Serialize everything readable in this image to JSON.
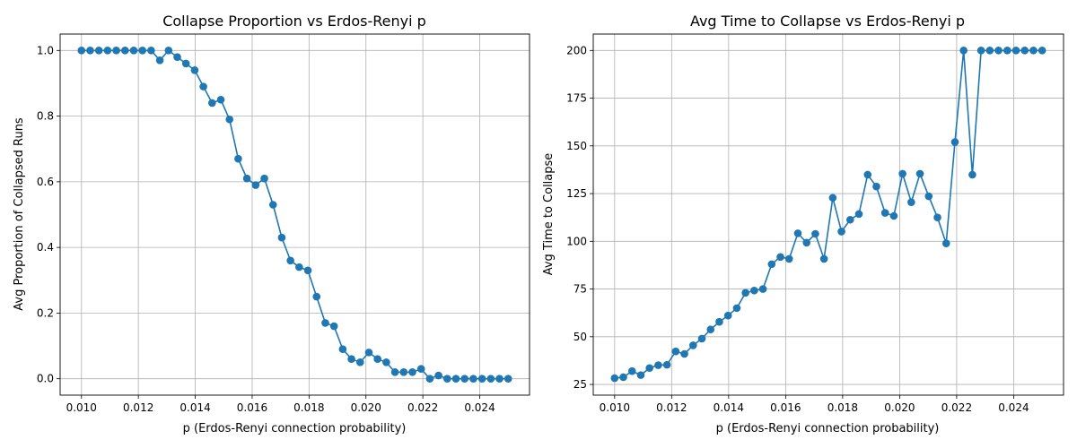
{
  "chart_data": [
    {
      "type": "line",
      "title": "Collapse Proportion vs Erdos-Renyi p",
      "xlabel": "p (Erdos-Renyi connection probability)",
      "ylabel": "Avg Proportion of Collapsed Runs",
      "xlim": [
        0.00925,
        0.02575
      ],
      "ylim": [
        -0.05,
        1.05
      ],
      "xticks": [
        0.01,
        0.012,
        0.014,
        0.016,
        0.018,
        0.02,
        0.022,
        0.024
      ],
      "xtick_labels": [
        "0.010",
        "0.012",
        "0.014",
        "0.016",
        "0.018",
        "0.020",
        "0.022",
        "0.024"
      ],
      "yticks": [
        0.0,
        0.2,
        0.4,
        0.6,
        0.8,
        1.0
      ],
      "ytick_labels": [
        "0.0",
        "0.2",
        "0.4",
        "0.6",
        "0.8",
        "1.0"
      ],
      "grid": true,
      "color": "#1f77b4",
      "marker": "circle",
      "x": [
        0.01,
        0.010306,
        0.010612,
        0.010918,
        0.011224,
        0.011531,
        0.011837,
        0.012143,
        0.012449,
        0.012755,
        0.013061,
        0.013367,
        0.013673,
        0.01398,
        0.014286,
        0.014592,
        0.014898,
        0.015204,
        0.01551,
        0.015816,
        0.016122,
        0.016429,
        0.016735,
        0.017041,
        0.017347,
        0.017653,
        0.017959,
        0.018265,
        0.018571,
        0.018878,
        0.019184,
        0.01949,
        0.019796,
        0.020102,
        0.020408,
        0.020714,
        0.02102,
        0.021327,
        0.021633,
        0.021939,
        0.022245,
        0.022551,
        0.022857,
        0.023163,
        0.023469,
        0.023776,
        0.024082,
        0.024388,
        0.024694,
        0.025
      ],
      "y": [
        1.0,
        1.0,
        1.0,
        1.0,
        1.0,
        1.0,
        1.0,
        1.0,
        1.0,
        0.97,
        1.0,
        0.98,
        0.96,
        0.94,
        0.89,
        0.84,
        0.85,
        0.79,
        0.67,
        0.61,
        0.59,
        0.61,
        0.53,
        0.43,
        0.36,
        0.34,
        0.33,
        0.25,
        0.17,
        0.16,
        0.09,
        0.06,
        0.05,
        0.08,
        0.06,
        0.05,
        0.02,
        0.02,
        0.02,
        0.03,
        0.0,
        0.01,
        0.0,
        0.0,
        0.0,
        0.0,
        0.0,
        0.0,
        0.0,
        0.0
      ]
    },
    {
      "type": "line",
      "title": "Avg Time to Collapse vs Erdos-Renyi p",
      "xlabel": "p (Erdos-Renyi connection probability)",
      "ylabel": "Avg Time to Collapse",
      "xlim": [
        0.00925,
        0.02575
      ],
      "ylim": [
        19.4,
        208.6
      ],
      "xticks": [
        0.01,
        0.012,
        0.014,
        0.016,
        0.018,
        0.02,
        0.022,
        0.024
      ],
      "xtick_labels": [
        "0.010",
        "0.012",
        "0.014",
        "0.016",
        "0.018",
        "0.020",
        "0.022",
        "0.024"
      ],
      "yticks": [
        25,
        50,
        75,
        100,
        125,
        150,
        175,
        200
      ],
      "ytick_labels": [
        "25",
        "50",
        "75",
        "100",
        "125",
        "150",
        "175",
        "200"
      ],
      "grid": true,
      "color": "#1f77b4",
      "marker": "circle",
      "x": [
        0.01,
        0.010306,
        0.010612,
        0.010918,
        0.011224,
        0.011531,
        0.011837,
        0.012143,
        0.012449,
        0.012755,
        0.013061,
        0.013367,
        0.013673,
        0.01398,
        0.014286,
        0.014592,
        0.014898,
        0.015204,
        0.01551,
        0.015816,
        0.016122,
        0.016429,
        0.016735,
        0.017041,
        0.017347,
        0.017653,
        0.017959,
        0.018265,
        0.018571,
        0.018878,
        0.019184,
        0.01949,
        0.019796,
        0.020102,
        0.020408,
        0.020714,
        0.02102,
        0.021327,
        0.021633,
        0.021939,
        0.022245,
        0.022551,
        0.022857,
        0.023163,
        0.023469,
        0.023776,
        0.024082,
        0.024388,
        0.024694,
        0.025
      ],
      "y": [
        28.3,
        28.8,
        32.0,
        29.9,
        33.6,
        35.1,
        35.3,
        42.3,
        41.0,
        45.5,
        49.0,
        53.8,
        57.8,
        61.1,
        65.0,
        73.0,
        74.2,
        75.0,
        88.0,
        91.8,
        90.8,
        104.2,
        99.3,
        103.9,
        90.8,
        122.8,
        105.1,
        111.3,
        114.3,
        134.9,
        128.7,
        114.9,
        113.3,
        135.4,
        120.5,
        135.4,
        123.6,
        112.5,
        98.9,
        152.0,
        200.0,
        134.9,
        200.0,
        200.0,
        200.0,
        200.0,
        200.0,
        200.0,
        200.0,
        200.0
      ]
    }
  ]
}
